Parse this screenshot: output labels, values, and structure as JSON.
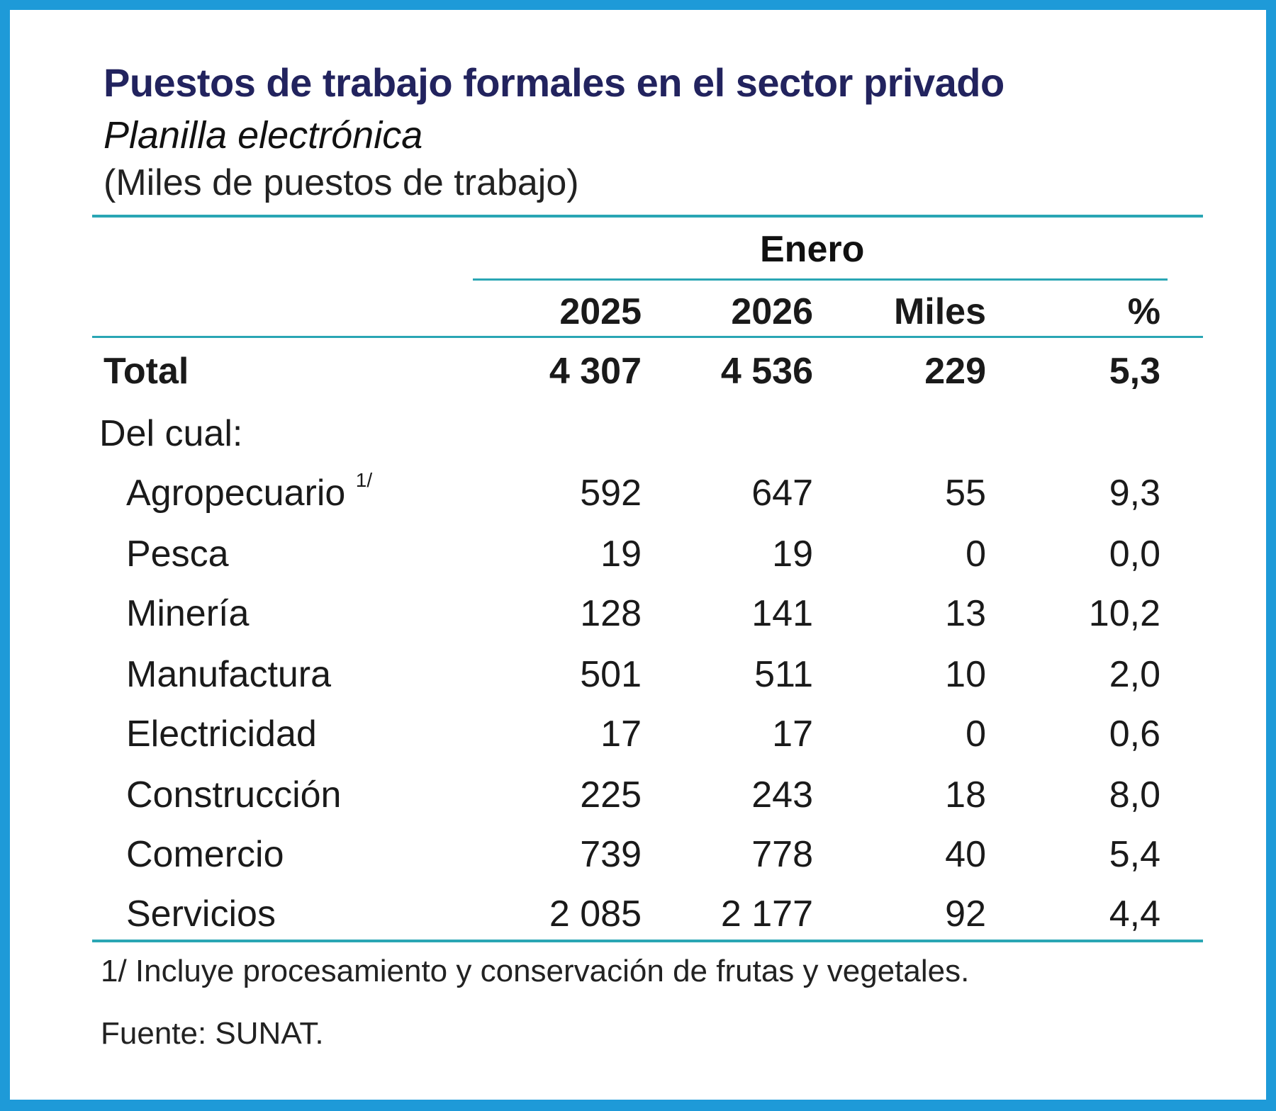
{
  "title": "Puestos de trabajo formales en el sector privado",
  "subtitle": "Planilla electrónica",
  "units": "(Miles de puestos de trabajo)",
  "period_header": "Enero",
  "columns": [
    "2025",
    "2026",
    "Miles",
    "%"
  ],
  "total": {
    "label": "Total",
    "values": [
      "4 307",
      "4 536",
      "229",
      "5,3"
    ]
  },
  "subheading": "Del cual:",
  "rows": [
    {
      "label": "Agropecuario",
      "sup": "1/",
      "values": [
        "592",
        "647",
        "55",
        "9,3"
      ]
    },
    {
      "label": "Pesca",
      "values": [
        "19",
        "19",
        "0",
        "0,0"
      ]
    },
    {
      "label": "Minería",
      "values": [
        "128",
        "141",
        "13",
        "10,2"
      ]
    },
    {
      "label": "Manufactura",
      "values": [
        "501",
        "511",
        "10",
        "2,0"
      ]
    },
    {
      "label": "Electricidad",
      "values": [
        "17",
        "17",
        "0",
        "0,6"
      ]
    },
    {
      "label": "Construcción",
      "values": [
        "225",
        "243",
        "18",
        "8,0"
      ]
    },
    {
      "label": "Comercio",
      "values": [
        "739",
        "778",
        "40",
        "5,4"
      ]
    },
    {
      "label": "Servicios",
      "values": [
        "2 085",
        "2 177",
        "92",
        "4,4"
      ]
    }
  ],
  "footnote": "1/ Incluye procesamiento y conservación de frutas y vegetales.",
  "source": "Fuente: SUNAT.",
  "colors": {
    "frame": "#1e9ad8",
    "rule": "#2aa6b4",
    "title": "#22235e"
  }
}
